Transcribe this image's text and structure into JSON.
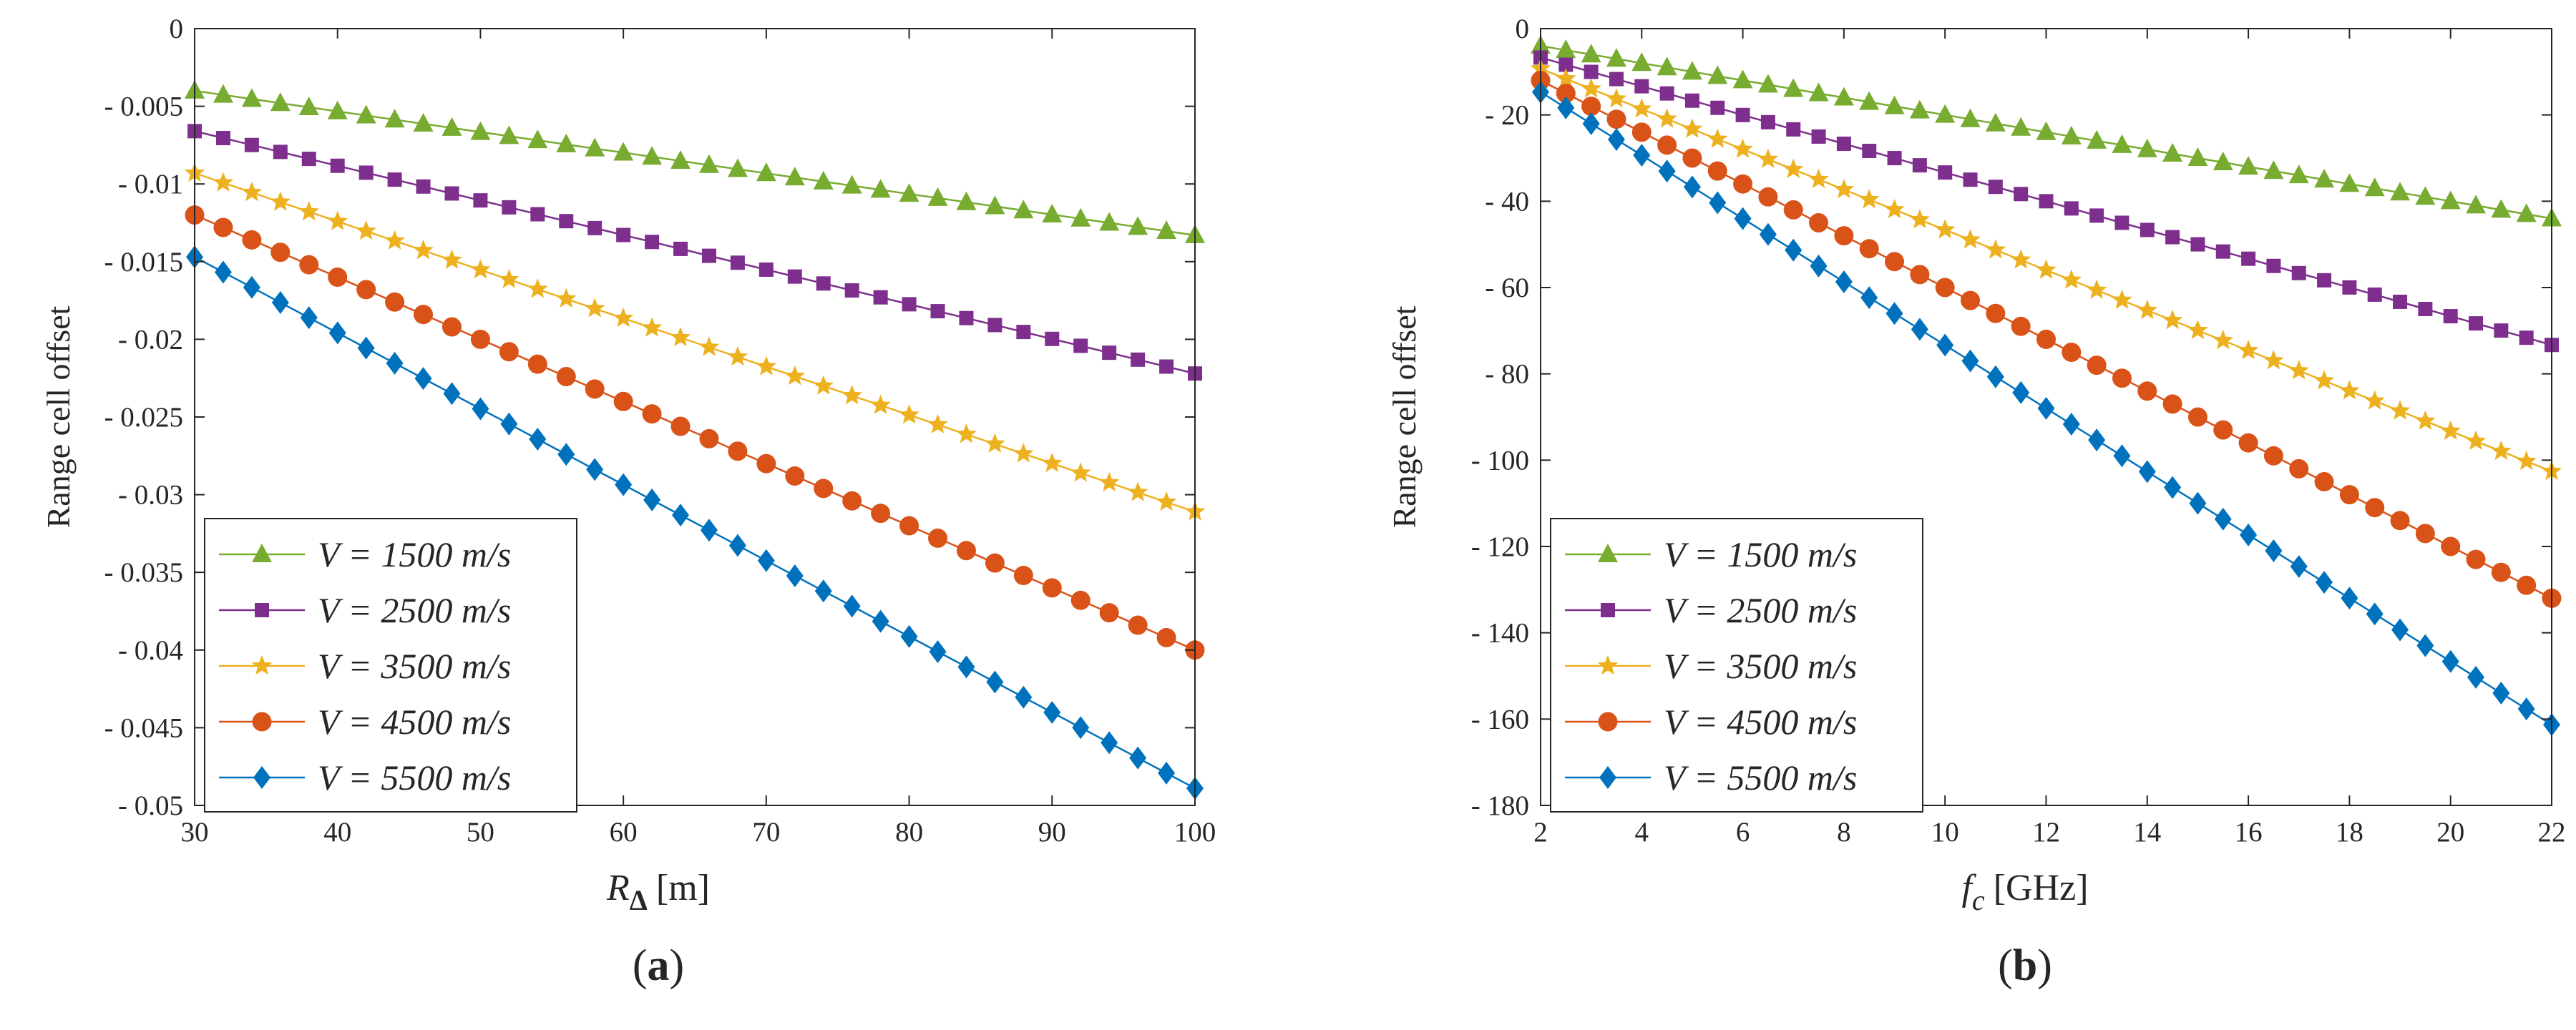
{
  "colors": {
    "V1500": "#77AC30",
    "V2500": "#7E2F8E",
    "V3500": "#EDB120",
    "V4500": "#D95319",
    "V5500": "#0072BD",
    "axis": "#262626"
  },
  "chart_data": [
    {
      "type": "line",
      "panel_label": "a",
      "ylabel": "Range cell offset",
      "xlabel": {
        "symbol": "R",
        "sub": "Δ",
        "unit": "[m]"
      },
      "xlim": [
        30,
        100
      ],
      "ylim": [
        -0.05,
        0
      ],
      "xticks": [
        30,
        40,
        50,
        60,
        70,
        80,
        90,
        100
      ],
      "xtick_labels": [
        "30",
        "40",
        "50",
        "60",
        "70",
        "80",
        "90",
        "100"
      ],
      "yticks": [
        0,
        -0.005,
        -0.01,
        -0.015,
        -0.02,
        -0.025,
        -0.03,
        -0.035,
        -0.04,
        -0.045,
        -0.05
      ],
      "ytick_labels": [
        "0",
        "- 0.005",
        "- 0.01",
        "- 0.015",
        "- 0.02",
        "- 0.025",
        "- 0.03",
        "- 0.035",
        "- 0.04",
        "- 0.045",
        "- 0.05"
      ],
      "grid": false,
      "legend": "bottom-left",
      "x": {
        "start": 30,
        "stop": 100,
        "step": 2
      },
      "series": [
        {
          "name": "V = 1500 m/s",
          "marker": "triangle",
          "color_key": "V1500",
          "y_start": -0.004,
          "y_end": -0.0133
        },
        {
          "name": "V = 2500 m/s",
          "marker": "square",
          "color_key": "V2500",
          "y_start": -0.0066,
          "y_end": -0.0222
        },
        {
          "name": "V = 3500 m/s",
          "marker": "star",
          "color_key": "V3500",
          "y_start": -0.0093,
          "y_end": -0.0311
        },
        {
          "name": "V = 4500 m/s",
          "marker": "circle",
          "color_key": "V4500",
          "y_start": -0.012,
          "y_end": -0.04
        },
        {
          "name": "V = 5500 m/s",
          "marker": "diamond",
          "color_key": "V5500",
          "y_start": -0.0147,
          "y_end": -0.0489
        }
      ]
    },
    {
      "type": "line",
      "panel_label": "b",
      "ylabel": "Range cell offset",
      "xlabel": {
        "symbol": "f",
        "sub": "c",
        "unit": "[GHz]"
      },
      "xlim": [
        2,
        22
      ],
      "ylim": [
        -180,
        0
      ],
      "xticks": [
        2,
        4,
        6,
        8,
        10,
        12,
        14,
        16,
        18,
        20,
        22
      ],
      "xtick_labels": [
        "2",
        "4",
        "6",
        "8",
        "10",
        "12",
        "14",
        "16",
        "18",
        "20",
        "22"
      ],
      "yticks": [
        0,
        -20,
        -40,
        -60,
        -80,
        -100,
        -120,
        -140,
        -160,
        -180
      ],
      "ytick_labels": [
        "0",
        "- 20",
        "- 40",
        "- 60",
        "- 80",
        "- 100",
        "- 120",
        "- 140",
        "- 160",
        "- 180"
      ],
      "grid": false,
      "legend": "bottom-left",
      "x": {
        "start": 2,
        "stop": 22,
        "step": 0.5
      },
      "series": [
        {
          "name": "V = 1500 m/s",
          "marker": "triangle",
          "color_key": "V1500",
          "y_start": -4,
          "y_end": -44
        },
        {
          "name": "V = 2500 m/s",
          "marker": "square",
          "color_key": "V2500",
          "y_start": -6.7,
          "y_end": -73.3
        },
        {
          "name": "V = 3500 m/s",
          "marker": "star",
          "color_key": "V3500",
          "y_start": -9.3,
          "y_end": -102.6
        },
        {
          "name": "V = 4500 m/s",
          "marker": "circle",
          "color_key": "V4500",
          "y_start": -12,
          "y_end": -132
        },
        {
          "name": "V = 5500 m/s",
          "marker": "diamond",
          "color_key": "V5500",
          "y_start": -14.7,
          "y_end": -161.3
        }
      ]
    }
  ]
}
